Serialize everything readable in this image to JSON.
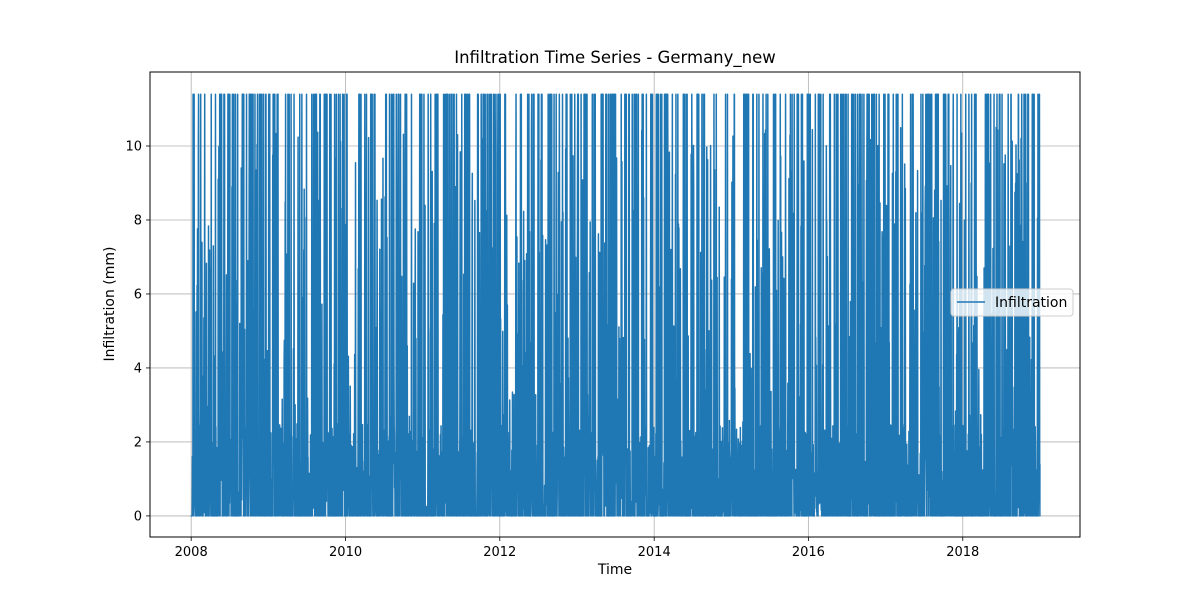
{
  "chart_data": {
    "type": "line",
    "title": "Infiltration Time Series - Germany_new",
    "xlabel": "Time",
    "ylabel": "Infiltration (mm)",
    "x_range": [
      "2008-01-01",
      "2019-01-01"
    ],
    "xlim": [
      "2007-06-20",
      "2019-07-10"
    ],
    "ylim": [
      -0.57,
      12.0
    ],
    "x_ticks": [
      "2008",
      "2010",
      "2012",
      "2014",
      "2016",
      "2018"
    ],
    "y_ticks": [
      "0",
      "2",
      "4",
      "6",
      "8",
      "10"
    ],
    "y_tick_values": [
      0,
      2,
      4,
      6,
      8,
      10
    ],
    "max_value": 11.4,
    "min_value": 0,
    "grid": true,
    "legend_position": "center-right",
    "series": [
      {
        "name": "Infiltration",
        "color": "#1f77b4"
      }
    ]
  }
}
